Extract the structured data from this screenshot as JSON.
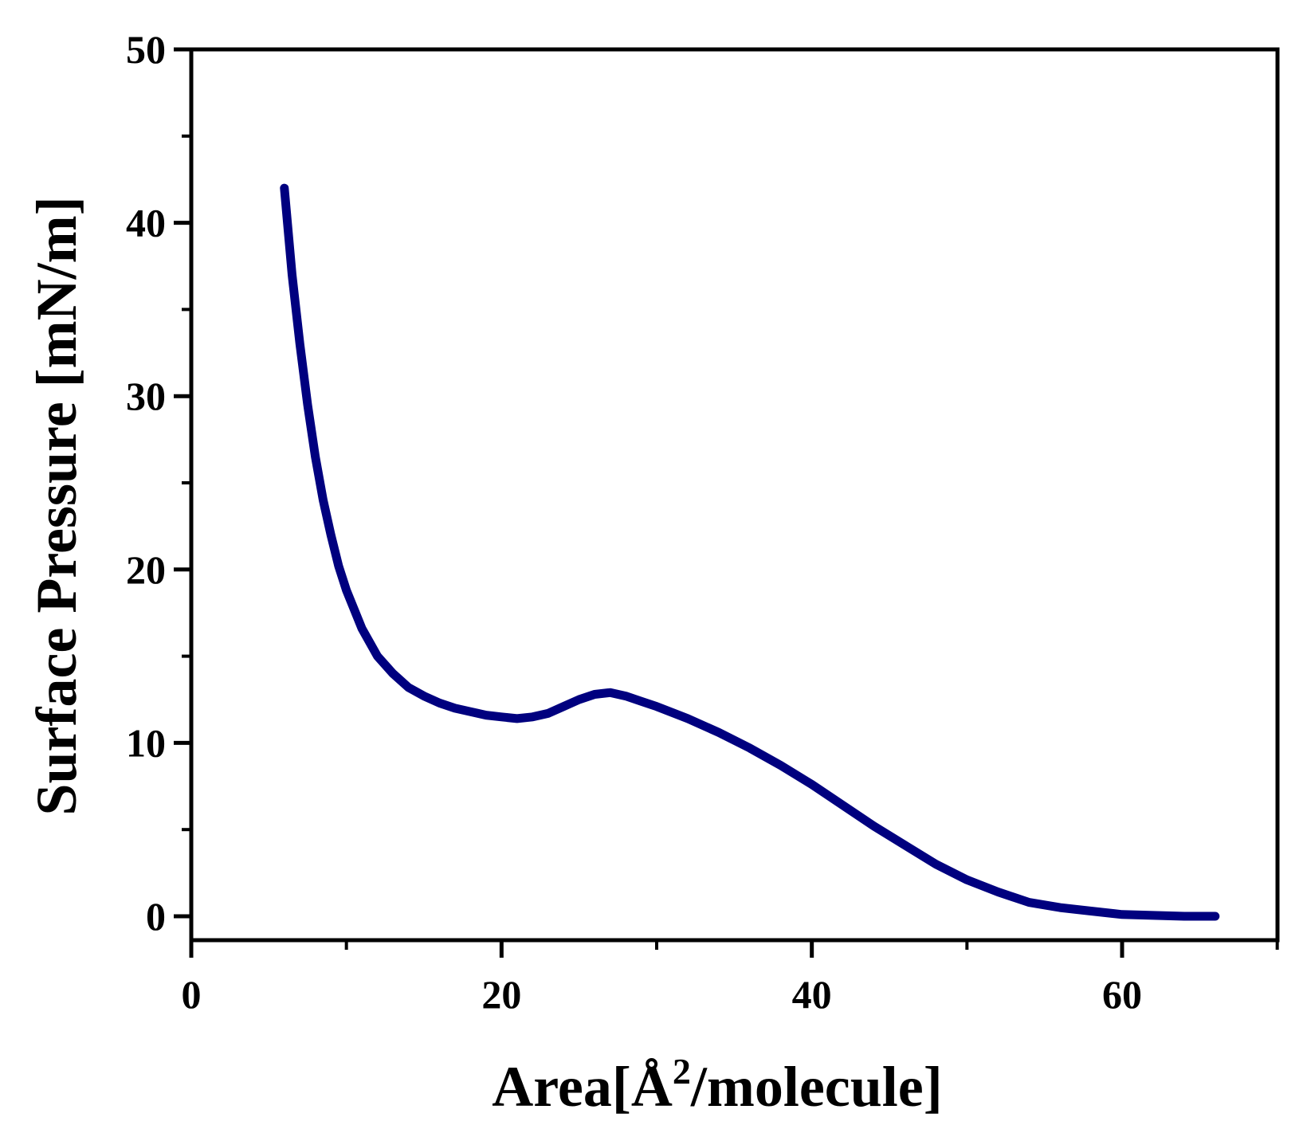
{
  "chart_data": {
    "type": "line",
    "xlabel": "Area[Å²/molecule]",
    "xlabel_parts": {
      "prefix": "Area[Å",
      "sup": "2",
      "suffix": "/molecule]"
    },
    "ylabel": "Surface Pressure [mN/m]",
    "xlim": [
      0,
      70
    ],
    "ylim": [
      0,
      50
    ],
    "x_major_ticks": [
      0,
      20,
      40,
      60
    ],
    "x_minor_ticks": [
      10,
      30,
      50,
      70
    ],
    "y_major_ticks": [
      0,
      10,
      20,
      30,
      40,
      50
    ],
    "y_minor_ticks": [
      5,
      15,
      25,
      35,
      45
    ],
    "x_tick_labels": [
      "0",
      "20",
      "40",
      "60"
    ],
    "y_tick_labels": [
      "0",
      "10",
      "20",
      "30",
      "40",
      "50"
    ],
    "grid": false,
    "line_color": "#00007f",
    "series": [
      {
        "x": [
          6.0,
          6.5,
          7.0,
          7.5,
          8.0,
          8.5,
          9.0,
          9.5,
          10.0,
          11.0,
          12.0,
          13.0,
          14.0,
          15.0,
          16.0,
          17.0,
          18.0,
          19.0,
          20.0,
          21.0,
          22.0,
          23.0,
          24.0,
          25.0,
          26.0,
          27.0,
          28.0,
          29.0,
          30.0,
          32.0,
          34.0,
          36.0,
          38.0,
          40.0,
          42.0,
          44.0,
          46.0,
          48.0,
          50.0,
          52.0,
          54.0,
          56.0,
          58.0,
          60.0,
          62.0,
          64.0,
          66.0
        ],
        "y": [
          42.0,
          37.0,
          33.0,
          29.5,
          26.5,
          24.0,
          22.0,
          20.2,
          18.8,
          16.6,
          15.0,
          14.0,
          13.2,
          12.7,
          12.3,
          12.0,
          11.8,
          11.6,
          11.5,
          11.4,
          11.5,
          11.7,
          12.1,
          12.5,
          12.8,
          12.9,
          12.7,
          12.4,
          12.1,
          11.4,
          10.6,
          9.7,
          8.7,
          7.6,
          6.4,
          5.2,
          4.1,
          3.0,
          2.1,
          1.4,
          0.8,
          0.5,
          0.3,
          0.1,
          0.05,
          0.0,
          0.0
        ]
      }
    ]
  }
}
